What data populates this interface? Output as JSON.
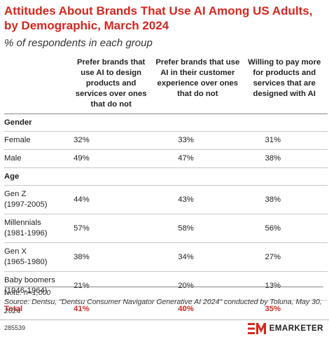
{
  "title": "Attitudes About Brands That Use AI Among US Adults, by Demographic, March 2024",
  "subtitle": "% of respondents in each group",
  "chart_data": {
    "type": "table",
    "columns": [
      "Prefer brands that use AI to design products and services over ones that do not",
      "Prefer brands that use AI in their customer experience over ones that do not",
      "Willing to pay more for products and services that are designed with AI"
    ],
    "sections": [
      {
        "name": "Gender",
        "rows": [
          {
            "label": "Female",
            "sublabel": "",
            "values": [
              "32%",
              "33%",
              "31%"
            ]
          },
          {
            "label": "Male",
            "sublabel": "",
            "values": [
              "49%",
              "47%",
              "38%"
            ]
          }
        ]
      },
      {
        "name": "Age",
        "rows": [
          {
            "label": "Gen Z",
            "sublabel": "(1997-2005)",
            "values": [
              "44%",
              "43%",
              "38%"
            ]
          },
          {
            "label": "Millennials",
            "sublabel": "(1981-1996)",
            "values": [
              "57%",
              "58%",
              "56%"
            ]
          },
          {
            "label": "Gen X",
            "sublabel": "(1965-1980)",
            "values": [
              "38%",
              "34%",
              "27%"
            ]
          },
          {
            "label": "Baby boomers",
            "sublabel": "(1946-1964)",
            "values": [
              "21%",
              "20%",
              "13%"
            ]
          }
        ]
      }
    ],
    "total": {
      "label": "Total",
      "values": [
        "41%",
        "40%",
        "35%"
      ]
    }
  },
  "notes": {
    "note": "Note: n=1,000",
    "source": "Source: Dentsu, \"Dentsu Consumer Navigator Generative AI 2024\" conducted by Toluna, May 30, 2024"
  },
  "footer": {
    "chart_id": "285539",
    "brand": "EMARKETER"
  },
  "colors": {
    "accent": "#d7261e",
    "text": "#222222"
  }
}
